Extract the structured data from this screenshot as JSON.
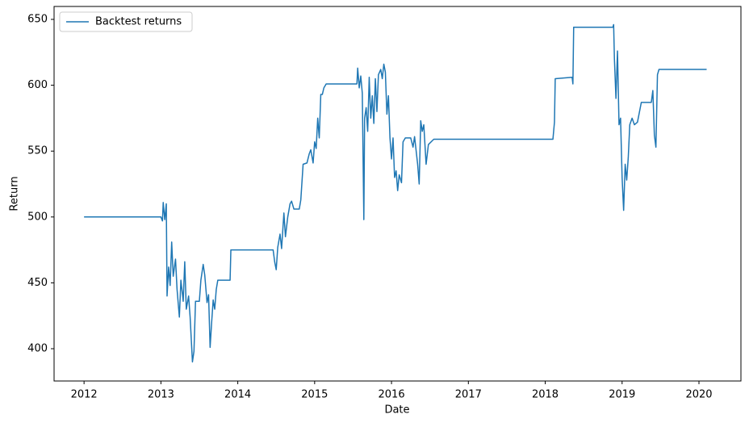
{
  "chart_data": {
    "type": "line",
    "xlabel": "Date",
    "ylabel": "Return",
    "legend": "upper left",
    "xlim": [
      2011.61,
      2020.546
    ],
    "ylim": [
      375.5,
      659.8
    ],
    "xticks": [
      2012,
      2013,
      2014,
      2015,
      2016,
      2017,
      2018,
      2019,
      2020
    ],
    "yticks": [
      400,
      450,
      500,
      550,
      600,
      650
    ],
    "x": [
      2012.0,
      2013.0,
      2013.02,
      2013.03,
      2013.05,
      2013.07,
      2013.08,
      2013.1,
      2013.12,
      2013.14,
      2013.16,
      2013.19,
      2013.21,
      2013.24,
      2013.26,
      2013.29,
      2013.31,
      2013.33,
      2013.36,
      2013.38,
      2013.41,
      2013.43,
      2013.45,
      2013.5,
      2013.52,
      2013.55,
      2013.57,
      2013.6,
      2013.62,
      2013.64,
      2013.66,
      2013.68,
      2013.7,
      2013.72,
      2013.74,
      2013.9,
      2013.91,
      2014.46,
      2014.48,
      2014.5,
      2014.52,
      2014.55,
      2014.57,
      2014.6,
      2014.62,
      2014.65,
      2014.68,
      2014.7,
      2014.73,
      2014.8,
      2014.82,
      2014.85,
      2014.9,
      2014.93,
      2014.95,
      2014.98,
      2015.0,
      2015.02,
      2015.04,
      2015.06,
      2015.08,
      2015.1,
      2015.12,
      2015.15,
      2015.55,
      2015.56,
      2015.58,
      2015.6,
      2015.62,
      2015.64,
      2015.65,
      2015.67,
      2015.69,
      2015.71,
      2015.73,
      2015.75,
      2015.77,
      2015.79,
      2015.81,
      2015.83,
      2015.86,
      2015.88,
      2015.9,
      2015.92,
      2015.94,
      2015.96,
      2015.98,
      2016.0,
      2016.02,
      2016.04,
      2016.06,
      2016.08,
      2016.1,
      2016.13,
      2016.15,
      2016.18,
      2016.25,
      2016.28,
      2016.3,
      2016.34,
      2016.36,
      2016.38,
      2016.4,
      2016.42,
      2016.45,
      2016.48,
      2016.55,
      2018.1,
      2018.12,
      2018.13,
      2018.35,
      2018.36,
      2018.37,
      2018.88,
      2018.89,
      2018.9,
      2018.92,
      2018.94,
      2018.96,
      2018.98,
      2019.0,
      2019.02,
      2019.04,
      2019.06,
      2019.08,
      2019.1,
      2019.13,
      2019.16,
      2019.2,
      2019.25,
      2019.38,
      2019.4,
      2019.42,
      2019.44,
      2019.46,
      2019.48,
      2020.1
    ],
    "series": [
      {
        "name": "Backtest returns",
        "color": "#1f77b4",
        "values": [
          500,
          500,
          497,
          511,
          498,
          510,
          440,
          462,
          448,
          481,
          455,
          468,
          445,
          424,
          452,
          436,
          466,
          430,
          440,
          424,
          390,
          398,
          436,
          436,
          452,
          464,
          456,
          435,
          441,
          401,
          420,
          437,
          430,
          445,
          452,
          452,
          475,
          475,
          466,
          460,
          477,
          487,
          476,
          503,
          485,
          500,
          510,
          512,
          506,
          506,
          513,
          540,
          541,
          548,
          551,
          541,
          557,
          552,
          575,
          560,
          593,
          593,
          598,
          601,
          601,
          613,
          598,
          607,
          594,
          498,
          575,
          583,
          565,
          606,
          575,
          592,
          571,
          605,
          580,
          608,
          612,
          605,
          616,
          610,
          578,
          592,
          560,
          544,
          560,
          530,
          535,
          520,
          532,
          526,
          557,
          560,
          560,
          553,
          561,
          540,
          525,
          573,
          565,
          570,
          540,
          555,
          559,
          559,
          572,
          605,
          606,
          601,
          644,
          644,
          646,
          620,
          590,
          626,
          570,
          575,
          530,
          505,
          540,
          528,
          545,
          570,
          575,
          570,
          572,
          587,
          587,
          596,
          562,
          553,
          608,
          612,
          612
        ]
      }
    ]
  }
}
